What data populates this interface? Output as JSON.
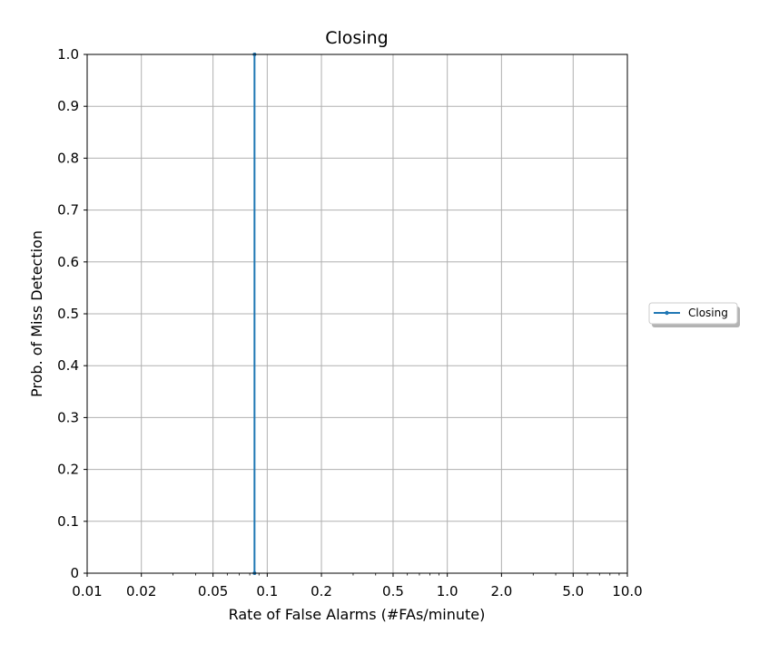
{
  "chart_data": {
    "type": "line",
    "title": "Closing",
    "xlabel": "Rate of False Alarms (#FAs/minute)",
    "ylabel": "Prob. of Miss Detection",
    "xscale": "log",
    "xlim": [
      0.01,
      10.0
    ],
    "ylim": [
      0,
      1.0
    ],
    "grid": true,
    "legend_position": "center-right, outside plot",
    "x_ticks": [
      {
        "value": 0.01,
        "label": "0.01"
      },
      {
        "value": 0.02,
        "label": "0.02"
      },
      {
        "value": 0.05,
        "label": "0.05"
      },
      {
        "value": 0.1,
        "label": "0.1"
      },
      {
        "value": 0.2,
        "label": "0.2"
      },
      {
        "value": 0.5,
        "label": "0.5"
      },
      {
        "value": 1.0,
        "label": "1.0"
      },
      {
        "value": 2.0,
        "label": "2.0"
      },
      {
        "value": 5.0,
        "label": "5.0"
      },
      {
        "value": 10.0,
        "label": "10.0"
      }
    ],
    "y_ticks": [
      {
        "value": 0,
        "label": "0"
      },
      {
        "value": 0.1,
        "label": "0.1"
      },
      {
        "value": 0.2,
        "label": "0.2"
      },
      {
        "value": 0.3,
        "label": "0.3"
      },
      {
        "value": 0.4,
        "label": "0.4"
      },
      {
        "value": 0.5,
        "label": "0.5"
      },
      {
        "value": 0.6,
        "label": "0.6"
      },
      {
        "value": 0.7,
        "label": "0.7"
      },
      {
        "value": 0.8,
        "label": "0.8"
      },
      {
        "value": 0.9,
        "label": "0.9"
      },
      {
        "value": 1.0,
        "label": "1.0"
      }
    ],
    "series": [
      {
        "name": "Closing",
        "color": "#1f77b4",
        "marker": "dot",
        "points": [
          {
            "x": 0.085,
            "y": 1.0
          },
          {
            "x": 0.085,
            "y": 0.0
          }
        ]
      }
    ]
  }
}
